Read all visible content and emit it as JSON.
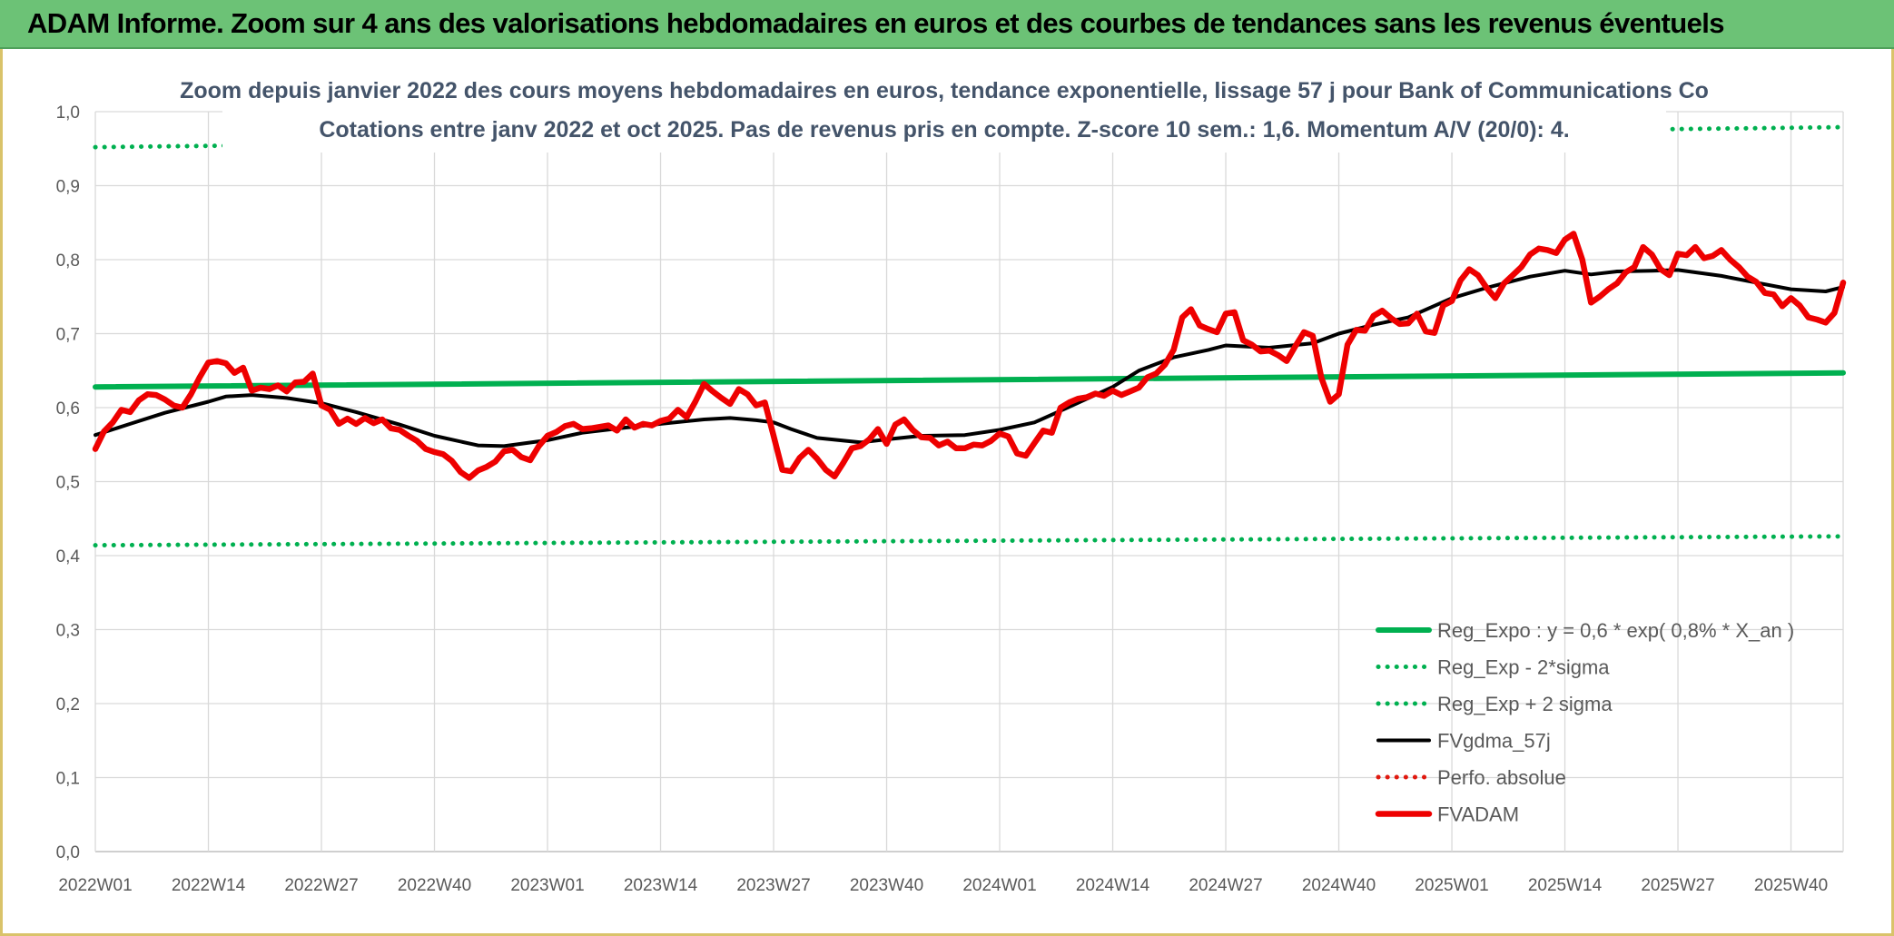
{
  "banner": {
    "title": "ADAM Informe. Zoom sur 4 ans des valorisations hebdomadaires en euros et des courbes de tendances sans les revenus éventuels"
  },
  "colors": {
    "banner_bg": "#6cc276",
    "reg_green": "#00b050",
    "trend_black": "#000000",
    "perf_red": "#e0190f",
    "fvadam_red": "#ee0000"
  },
  "chart_data": {
    "type": "line",
    "title": "Zoom depuis janvier 2022 des cours moyens hebdomadaires en euros, tendance exponentielle, lissage 57 j pour Bank of Communications Co",
    "subtitle": "Cotations entre janv 2022 et oct 2025. Pas de revenus pris en compte. Z-score 10 sem.: 1,6. Momentum A/V (20/0): 4.",
    "xlabel": "",
    "ylabel": "",
    "ylim": [
      0,
      1
    ],
    "y_ticks": [
      "0,0",
      "0,1",
      "0,2",
      "0,3",
      "0,4",
      "0,5",
      "0,6",
      "0,7",
      "0,8",
      "0,9",
      "1,0"
    ],
    "x_ticks": [
      "2022W01",
      "2022W14",
      "2022W27",
      "2022W40",
      "2023W01",
      "2023W14",
      "2023W27",
      "2023W40",
      "2024W01",
      "2024W14",
      "2024W27",
      "2024W40",
      "2025W01",
      "2025W14",
      "2025W27",
      "2025W40"
    ],
    "x_tick_index": [
      0,
      13,
      26,
      39,
      52,
      65,
      78,
      91,
      104,
      117,
      130,
      143,
      156,
      169,
      182,
      195
    ],
    "x_count": 202,
    "grid": true,
    "legend_position": "bottom-right",
    "series": [
      {
        "name": "Reg_Expo : y = 0,6 * exp( 0,8% *  X_an )",
        "style": "solid-thick",
        "color": "#00b050",
        "points": [
          [
            0,
            0.628
          ],
          [
            201,
            0.647
          ]
        ]
      },
      {
        "name": "Reg_Exp - 2*sigma",
        "style": "dotted",
        "color": "#00b050",
        "points": [
          [
            0,
            0.414
          ],
          [
            201,
            0.426
          ]
        ]
      },
      {
        "name": "Reg_Exp + 2 sigma",
        "style": "dotted",
        "color": "#00b050",
        "points": [
          [
            0,
            0.952
          ],
          [
            201,
            0.979
          ]
        ]
      },
      {
        "name": "FVgdma_57j",
        "style": "solid",
        "color": "#000000",
        "points": [
          [
            0,
            0.563
          ],
          [
            4,
            0.578
          ],
          [
            8,
            0.593
          ],
          [
            13,
            0.608
          ],
          [
            15,
            0.615
          ],
          [
            18,
            0.617
          ],
          [
            22,
            0.613
          ],
          [
            26,
            0.606
          ],
          [
            30,
            0.594
          ],
          [
            35,
            0.577
          ],
          [
            39,
            0.562
          ],
          [
            44,
            0.549
          ],
          [
            47,
            0.548
          ],
          [
            52,
            0.556
          ],
          [
            56,
            0.566
          ],
          [
            61,
            0.573
          ],
          [
            65,
            0.578
          ],
          [
            70,
            0.584
          ],
          [
            73,
            0.586
          ],
          [
            76,
            0.583
          ],
          [
            78,
            0.58
          ],
          [
            80,
            0.571
          ],
          [
            83,
            0.559
          ],
          [
            88,
            0.553
          ],
          [
            91,
            0.557
          ],
          [
            95,
            0.562
          ],
          [
            100,
            0.563
          ],
          [
            104,
            0.57
          ],
          [
            108,
            0.58
          ],
          [
            112,
            0.601
          ],
          [
            117,
            0.628
          ],
          [
            120,
            0.65
          ],
          [
            124,
            0.668
          ],
          [
            128,
            0.678
          ],
          [
            130,
            0.684
          ],
          [
            135,
            0.681
          ],
          [
            140,
            0.687
          ],
          [
            143,
            0.7
          ],
          [
            147,
            0.712
          ],
          [
            151,
            0.722
          ],
          [
            156,
            0.748
          ],
          [
            160,
            0.762
          ],
          [
            165,
            0.777
          ],
          [
            169,
            0.785
          ],
          [
            172,
            0.78
          ],
          [
            175,
            0.784
          ],
          [
            179,
            0.785
          ],
          [
            182,
            0.786
          ],
          [
            187,
            0.778
          ],
          [
            191,
            0.769
          ],
          [
            195,
            0.76
          ],
          [
            199,
            0.757
          ],
          [
            201,
            0.763
          ]
        ]
      },
      {
        "name": "Perfo. absolue",
        "style": "dotted",
        "color": "#e0190f",
        "points": []
      },
      {
        "name": "FVADAM",
        "style": "solid-thick",
        "color": "#ee0000",
        "points": [
          [
            0,
            0.544
          ],
          [
            1,
            0.568
          ],
          [
            2,
            0.58
          ],
          [
            3,
            0.597
          ],
          [
            4,
            0.594
          ],
          [
            5,
            0.61
          ],
          [
            6,
            0.618
          ],
          [
            7,
            0.617
          ],
          [
            8,
            0.611
          ],
          [
            9,
            0.603
          ],
          [
            10,
            0.6
          ],
          [
            11,
            0.618
          ],
          [
            12,
            0.641
          ],
          [
            13,
            0.661
          ],
          [
            14,
            0.663
          ],
          [
            15,
            0.66
          ],
          [
            16,
            0.647
          ],
          [
            17,
            0.654
          ],
          [
            18,
            0.623
          ],
          [
            19,
            0.627
          ],
          [
            20,
            0.625
          ],
          [
            21,
            0.63
          ],
          [
            22,
            0.622
          ],
          [
            23,
            0.634
          ],
          [
            24,
            0.635
          ],
          [
            25,
            0.646
          ],
          [
            26,
            0.603
          ],
          [
            27,
            0.597
          ],
          [
            28,
            0.578
          ],
          [
            29,
            0.585
          ],
          [
            30,
            0.578
          ],
          [
            31,
            0.586
          ],
          [
            32,
            0.579
          ],
          [
            33,
            0.584
          ],
          [
            34,
            0.572
          ],
          [
            35,
            0.57
          ],
          [
            36,
            0.562
          ],
          [
            37,
            0.555
          ],
          [
            38,
            0.544
          ],
          [
            39,
            0.54
          ],
          [
            40,
            0.537
          ],
          [
            41,
            0.528
          ],
          [
            42,
            0.513
          ],
          [
            43,
            0.505
          ],
          [
            44,
            0.515
          ],
          [
            45,
            0.52
          ],
          [
            46,
            0.527
          ],
          [
            47,
            0.541
          ],
          [
            48,
            0.543
          ],
          [
            49,
            0.533
          ],
          [
            50,
            0.529
          ],
          [
            51,
            0.548
          ],
          [
            52,
            0.562
          ],
          [
            53,
            0.567
          ],
          [
            54,
            0.575
          ],
          [
            55,
            0.578
          ],
          [
            56,
            0.571
          ],
          [
            57,
            0.572
          ],
          [
            58,
            0.574
          ],
          [
            59,
            0.576
          ],
          [
            60,
            0.569
          ],
          [
            61,
            0.584
          ],
          [
            62,
            0.573
          ],
          [
            63,
            0.578
          ],
          [
            64,
            0.576
          ],
          [
            65,
            0.582
          ],
          [
            66,
            0.585
          ],
          [
            67,
            0.597
          ],
          [
            68,
            0.587
          ],
          [
            69,
            0.608
          ],
          [
            70,
            0.632
          ],
          [
            71,
            0.622
          ],
          [
            72,
            0.613
          ],
          [
            73,
            0.605
          ],
          [
            74,
            0.625
          ],
          [
            75,
            0.618
          ],
          [
            76,
            0.603
          ],
          [
            77,
            0.607
          ],
          [
            78,
            0.562
          ],
          [
            79,
            0.516
          ],
          [
            80,
            0.514
          ],
          [
            81,
            0.532
          ],
          [
            82,
            0.543
          ],
          [
            83,
            0.531
          ],
          [
            84,
            0.516
          ],
          [
            85,
            0.507
          ],
          [
            86,
            0.525
          ],
          [
            87,
            0.545
          ],
          [
            88,
            0.548
          ],
          [
            89,
            0.557
          ],
          [
            90,
            0.571
          ],
          [
            91,
            0.551
          ],
          [
            92,
            0.577
          ],
          [
            93,
            0.584
          ],
          [
            94,
            0.57
          ],
          [
            95,
            0.56
          ],
          [
            96,
            0.559
          ],
          [
            97,
            0.549
          ],
          [
            98,
            0.554
          ],
          [
            99,
            0.545
          ],
          [
            100,
            0.545
          ],
          [
            101,
            0.55
          ],
          [
            102,
            0.549
          ],
          [
            103,
            0.555
          ],
          [
            104,
            0.565
          ],
          [
            105,
            0.561
          ],
          [
            106,
            0.538
          ],
          [
            107,
            0.535
          ],
          [
            108,
            0.552
          ],
          [
            109,
            0.569
          ],
          [
            110,
            0.566
          ],
          [
            111,
            0.6
          ],
          [
            112,
            0.607
          ],
          [
            113,
            0.612
          ],
          [
            114,
            0.614
          ],
          [
            115,
            0.619
          ],
          [
            116,
            0.616
          ],
          [
            117,
            0.623
          ],
          [
            118,
            0.617
          ],
          [
            119,
            0.622
          ],
          [
            120,
            0.627
          ],
          [
            121,
            0.641
          ],
          [
            122,
            0.646
          ],
          [
            123,
            0.658
          ],
          [
            124,
            0.678
          ],
          [
            125,
            0.722
          ],
          [
            126,
            0.733
          ],
          [
            127,
            0.711
          ],
          [
            128,
            0.706
          ],
          [
            129,
            0.702
          ],
          [
            130,
            0.727
          ],
          [
            131,
            0.729
          ],
          [
            132,
            0.691
          ],
          [
            133,
            0.685
          ],
          [
            134,
            0.676
          ],
          [
            135,
            0.677
          ],
          [
            136,
            0.671
          ],
          [
            137,
            0.663
          ],
          [
            138,
            0.683
          ],
          [
            139,
            0.702
          ],
          [
            140,
            0.697
          ],
          [
            141,
            0.64
          ],
          [
            142,
            0.608
          ],
          [
            143,
            0.618
          ],
          [
            144,
            0.685
          ],
          [
            145,
            0.705
          ],
          [
            146,
            0.704
          ],
          [
            147,
            0.724
          ],
          [
            148,
            0.731
          ],
          [
            149,
            0.721
          ],
          [
            150,
            0.713
          ],
          [
            151,
            0.714
          ],
          [
            152,
            0.727
          ],
          [
            153,
            0.703
          ],
          [
            154,
            0.701
          ],
          [
            155,
            0.738
          ],
          [
            156,
            0.744
          ],
          [
            157,
            0.772
          ],
          [
            158,
            0.787
          ],
          [
            159,
            0.779
          ],
          [
            160,
            0.762
          ],
          [
            161,
            0.748
          ],
          [
            162,
            0.768
          ],
          [
            163,
            0.779
          ],
          [
            164,
            0.79
          ],
          [
            165,
            0.807
          ],
          [
            166,
            0.815
          ],
          [
            167,
            0.813
          ],
          [
            168,
            0.809
          ],
          [
            169,
            0.827
          ],
          [
            170,
            0.835
          ],
          [
            171,
            0.8
          ],
          [
            172,
            0.742
          ],
          [
            173,
            0.75
          ],
          [
            174,
            0.76
          ],
          [
            175,
            0.768
          ],
          [
            176,
            0.783
          ],
          [
            177,
            0.79
          ],
          [
            178,
            0.817
          ],
          [
            179,
            0.807
          ],
          [
            180,
            0.787
          ],
          [
            181,
            0.779
          ],
          [
            182,
            0.808
          ],
          [
            183,
            0.806
          ],
          [
            184,
            0.817
          ],
          [
            185,
            0.802
          ],
          [
            186,
            0.805
          ],
          [
            187,
            0.813
          ],
          [
            188,
            0.8
          ],
          [
            189,
            0.79
          ],
          [
            190,
            0.777
          ],
          [
            191,
            0.77
          ],
          [
            192,
            0.755
          ],
          [
            193,
            0.753
          ],
          [
            194,
            0.737
          ],
          [
            195,
            0.748
          ],
          [
            196,
            0.738
          ],
          [
            197,
            0.722
          ],
          [
            198,
            0.719
          ],
          [
            199,
            0.715
          ],
          [
            200,
            0.728
          ],
          [
            201,
            0.769
          ]
        ]
      }
    ]
  }
}
